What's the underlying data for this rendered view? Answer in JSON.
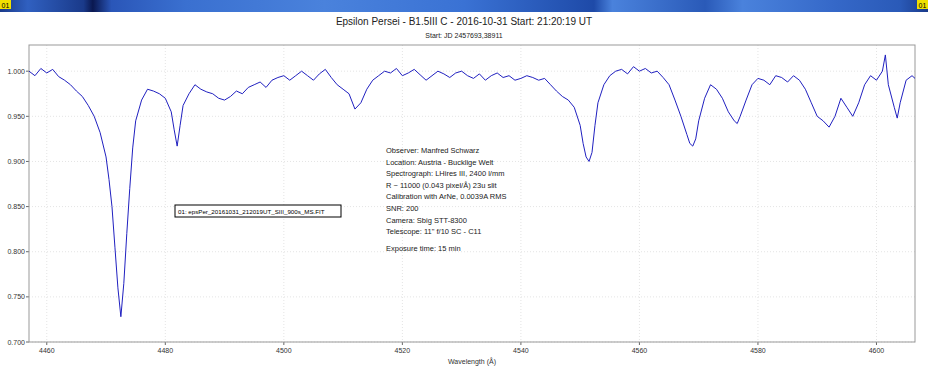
{
  "chart_data": {
    "type": "line",
    "title": "Epsilon Persei - B1.5III C - 2016-10-31 Start: 21:20:19 UT",
    "subtitle": "Start: JD 2457693,38911",
    "x_label": "Wavelength (Å)",
    "strip_label": "01",
    "annotations": {
      "file_label": "01: epsPer_20161031_212019UT_SIII_900s_MS.FIT",
      "info": [
        "Observer: Manfred Schwarz",
        "Location: Austria - Bucklige Welt",
        "Spectrograph: LHires III, 2400 l/mm",
        "R ~ 11000 (0.043 pixel/Å) 23u slit",
        "Calibration with ArNe, 0.0039A RMS",
        "SNR: 200",
        "Camera: Sbig STT-8300",
        "Telescope: 11\" f/10 SC - C11",
        "Exposure time: 15 min"
      ]
    },
    "xlim": [
      4457,
      4606.5
    ],
    "xticks": [
      4460,
      4480,
      4500,
      4520,
      4540,
      4560,
      4580,
      4600
    ],
    "ylim": [
      0.7,
      1.029
    ],
    "yticks": [
      {
        "value": 0.7,
        "label": "0.700"
      },
      {
        "value": 0.75,
        "label": "0.750"
      },
      {
        "value": 0.8,
        "label": "0.800"
      },
      {
        "value": 0.85,
        "label": "0.850"
      },
      {
        "value": 0.9,
        "label": "0.900"
      },
      {
        "value": 0.95,
        "label": "0.950"
      },
      {
        "value": 1.0,
        "label": "1.000"
      }
    ],
    "grid": true,
    "x": [
      4457,
      4458,
      4459,
      4460,
      4461,
      4462,
      4463,
      4464,
      4465,
      4466,
      4467,
      4468,
      4469,
      4470,
      4470.5,
      4471,
      4471.5,
      4472,
      4472.5,
      4473,
      4473.5,
      4474,
      4474.5,
      4475,
      4476,
      4477,
      4478,
      4479,
      4480,
      4481,
      4481.5,
      4482,
      4482.5,
      4483,
      4484,
      4485,
      4486,
      4487,
      4488,
      4489,
      4490,
      4491,
      4492,
      4493,
      4494,
      4495,
      4496,
      4497,
      4498,
      4499,
      4500,
      4501,
      4502,
      4503,
      4504,
      4505,
      4506,
      4507,
      4508,
      4509,
      4510,
      4511,
      4512,
      4513,
      4514,
      4515,
      4516,
      4517,
      4518,
      4519,
      4520,
      4521,
      4522,
      4523,
      4524,
      4525,
      4526,
      4527,
      4528,
      4529,
      4530,
      4531,
      4532,
      4533,
      4534,
      4535,
      4536,
      4537,
      4538,
      4539,
      4540,
      4541,
      4542,
      4543,
      4544,
      4545,
      4546,
      4547,
      4548,
      4549,
      4550,
      4550.5,
      4551,
      4551.5,
      4552,
      4552.5,
      4553,
      4554,
      4555,
      4556,
      4557,
      4558,
      4559,
      4560,
      4561,
      4562,
      4563,
      4564,
      4565,
      4566,
      4567,
      4568,
      4568.5,
      4569,
      4569.5,
      4570,
      4571,
      4572,
      4573,
      4574,
      4575,
      4576,
      4576.5,
      4577,
      4578,
      4579,
      4580,
      4581,
      4582,
      4583,
      4584,
      4585,
      4586,
      4587,
      4588,
      4589,
      4590,
      4591,
      4592,
      4593,
      4594,
      4595,
      4596,
      4597,
      4598,
      4599,
      4600,
      4601,
      4601.5,
      4602,
      4603,
      4603.5,
      4604,
      4605,
      4606,
      4606.5
    ],
    "series": [
      {
        "name": "01",
        "color": "#2020c0",
        "values": [
          1.0,
          0.995,
          1.003,
          0.998,
          1.002,
          0.994,
          0.99,
          0.985,
          0.978,
          0.972,
          0.962,
          0.95,
          0.932,
          0.905,
          0.88,
          0.85,
          0.805,
          0.76,
          0.728,
          0.765,
          0.82,
          0.87,
          0.915,
          0.945,
          0.968,
          0.98,
          0.978,
          0.975,
          0.97,
          0.955,
          0.935,
          0.917,
          0.94,
          0.962,
          0.975,
          0.985,
          0.98,
          0.977,
          0.975,
          0.97,
          0.968,
          0.972,
          0.978,
          0.975,
          0.982,
          0.985,
          0.988,
          0.982,
          0.99,
          0.993,
          0.995,
          0.99,
          0.995,
          1.0,
          0.995,
          0.99,
          0.997,
          1.002,
          0.993,
          0.985,
          0.98,
          0.975,
          0.958,
          0.965,
          0.98,
          0.99,
          0.995,
          1.0,
          0.998,
          1.003,
          0.995,
          0.998,
          1.002,
          0.996,
          0.99,
          0.995,
          1.0,
          0.997,
          0.993,
          0.998,
          1.0,
          0.995,
          0.992,
          0.997,
          0.99,
          0.995,
          0.998,
          0.993,
          0.995,
          0.99,
          0.992,
          0.995,
          0.993,
          0.99,
          0.992,
          0.985,
          0.978,
          0.972,
          0.968,
          0.96,
          0.94,
          0.92,
          0.905,
          0.9,
          0.91,
          0.94,
          0.965,
          0.985,
          0.995,
          1.0,
          1.002,
          0.997,
          1.005,
          1.0,
          1.003,
          0.998,
          1.0,
          0.993,
          0.985,
          0.968,
          0.95,
          0.93,
          0.92,
          0.917,
          0.925,
          0.945,
          0.97,
          0.985,
          0.98,
          0.97,
          0.955,
          0.945,
          0.942,
          0.95,
          0.968,
          0.985,
          0.992,
          0.99,
          0.985,
          0.995,
          0.993,
          0.988,
          0.995,
          0.99,
          0.98,
          0.965,
          0.95,
          0.945,
          0.938,
          0.95,
          0.97,
          0.96,
          0.95,
          0.965,
          0.985,
          0.995,
          0.99,
          1.0,
          1.018,
          0.985,
          0.96,
          0.948,
          0.965,
          0.99,
          0.995,
          0.992
        ]
      }
    ]
  }
}
